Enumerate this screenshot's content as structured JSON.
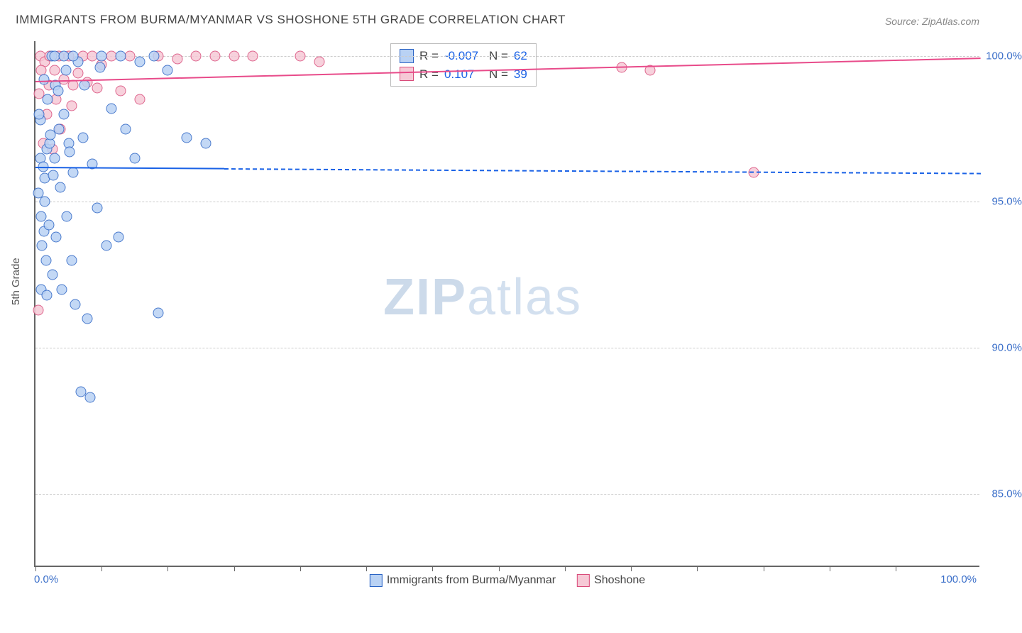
{
  "title_text": "IMMIGRANTS FROM BURMA/MYANMAR VS SHOSHONE 5TH GRADE CORRELATION CHART",
  "source_prefix": "Source: ",
  "source_name": "ZipAtlas.com",
  "ylabel": "5th Grade",
  "watermark_bold": "ZIP",
  "watermark_light": "atlas",
  "chart": {
    "type": "scatter",
    "xlim": [
      0,
      100
    ],
    "ylim": [
      82.5,
      100.5
    ],
    "y_ticks": [
      85.0,
      90.0,
      95.0,
      100.0
    ],
    "y_tick_labels": [
      "85.0%",
      "90.0%",
      "95.0%",
      "100.0%"
    ],
    "x_minor_ticks": [
      0,
      7,
      14,
      21,
      28,
      35,
      42,
      49,
      56,
      63,
      70,
      77,
      84,
      91
    ],
    "x_origin_label": "0.0%",
    "x_max_label": "100.0%",
    "grid_color": "#cccccc",
    "axis_color": "#666666",
    "background_color": "#ffffff"
  },
  "series": {
    "a": {
      "label": "Immigrants from Burma/Myanmar",
      "point_fill": "#b9d2f4",
      "point_stroke": "#2a63c4",
      "trend_color": "#1a62e6",
      "trend_solid_end_pct": 20,
      "R": "-0.007",
      "N": "62",
      "trend_y_start": 96.2,
      "trend_y_end": 96.0,
      "points": [
        [
          0.5,
          96.5
        ],
        [
          0.8,
          96.2
        ],
        [
          1.0,
          95.8
        ],
        [
          1.2,
          96.8
        ],
        [
          1.5,
          97.0
        ],
        [
          1.0,
          95.0
        ],
        [
          0.6,
          94.5
        ],
        [
          0.9,
          94.0
        ],
        [
          1.4,
          94.2
        ],
        [
          2.0,
          96.5
        ],
        [
          2.5,
          97.5
        ],
        [
          3.0,
          98.0
        ],
        [
          3.5,
          97.0
        ],
        [
          4.0,
          96.0
        ],
        [
          0.7,
          93.5
        ],
        [
          1.1,
          93.0
        ],
        [
          2.2,
          93.8
        ],
        [
          1.8,
          92.5
        ],
        [
          2.8,
          92.0
        ],
        [
          0.5,
          97.8
        ],
        [
          1.3,
          98.5
        ],
        [
          2.1,
          99.0
        ],
        [
          3.2,
          99.5
        ],
        [
          4.5,
          99.8
        ],
        [
          5.0,
          97.2
        ],
        [
          6.0,
          96.3
        ],
        [
          7.0,
          100.0
        ],
        [
          8.0,
          98.2
        ],
        [
          9.5,
          97.5
        ],
        [
          11.0,
          99.8
        ],
        [
          12.5,
          100.0
        ],
        [
          14.0,
          99.5
        ],
        [
          3.8,
          93.0
        ],
        [
          4.2,
          91.5
        ],
        [
          5.5,
          91.0
        ],
        [
          6.5,
          94.8
        ],
        [
          0.4,
          98.0
        ],
        [
          0.9,
          99.2
        ],
        [
          1.7,
          100.0
        ],
        [
          2.6,
          95.5
        ],
        [
          3.3,
          94.5
        ],
        [
          4.8,
          88.5
        ],
        [
          5.8,
          88.3
        ],
        [
          7.5,
          93.5
        ],
        [
          8.8,
          93.8
        ],
        [
          16.0,
          97.2
        ],
        [
          18.0,
          97.0
        ],
        [
          13.0,
          91.2
        ],
        [
          2.4,
          98.8
        ],
        [
          1.6,
          97.3
        ],
        [
          0.3,
          95.3
        ],
        [
          1.9,
          95.9
        ],
        [
          3.6,
          96.7
        ],
        [
          5.2,
          99.0
        ],
        [
          6.8,
          99.6
        ],
        [
          9.0,
          100.0
        ],
        [
          10.5,
          96.5
        ],
        [
          0.6,
          92.0
        ],
        [
          1.2,
          91.8
        ],
        [
          2.0,
          100.0
        ],
        [
          3.0,
          100.0
        ],
        [
          4.0,
          100.0
        ]
      ]
    },
    "b": {
      "label": "Shoshone",
      "point_fill": "#f6c9d6",
      "point_stroke": "#d94b7a",
      "trend_color": "#e84b8a",
      "trend_solid_end_pct": 100,
      "R": "0.107",
      "N": "39",
      "trend_y_start": 99.15,
      "trend_y_end": 99.95,
      "points": [
        [
          0.5,
          100.0
        ],
        [
          1.0,
          99.8
        ],
        [
          1.5,
          100.0
        ],
        [
          2.0,
          99.5
        ],
        [
          2.5,
          100.0
        ],
        [
          3.0,
          99.2
        ],
        [
          3.5,
          100.0
        ],
        [
          4.0,
          99.0
        ],
        [
          5.0,
          100.0
        ],
        [
          6.0,
          100.0
        ],
        [
          7.0,
          99.7
        ],
        [
          8.0,
          100.0
        ],
        [
          9.0,
          98.8
        ],
        [
          10.0,
          100.0
        ],
        [
          11.0,
          98.5
        ],
        [
          13.0,
          100.0
        ],
        [
          15.0,
          99.9
        ],
        [
          17.0,
          100.0
        ],
        [
          19.0,
          100.0
        ],
        [
          21.0,
          100.0
        ],
        [
          23.0,
          100.0
        ],
        [
          28.0,
          100.0
        ],
        [
          30.0,
          99.8
        ],
        [
          62.0,
          99.6
        ],
        [
          65.0,
          99.5
        ],
        [
          76.0,
          96.0
        ],
        [
          1.2,
          98.0
        ],
        [
          0.8,
          97.0
        ],
        [
          1.8,
          96.8
        ],
        [
          2.6,
          97.5
        ],
        [
          0.4,
          98.7
        ],
        [
          3.8,
          98.3
        ],
        [
          0.3,
          91.3
        ],
        [
          0.6,
          99.5
        ],
        [
          1.4,
          99.0
        ],
        [
          2.2,
          98.5
        ],
        [
          4.5,
          99.4
        ],
        [
          5.5,
          99.1
        ],
        [
          6.5,
          98.9
        ]
      ]
    }
  },
  "legend": {
    "stats_prefix_R": "R =",
    "stats_prefix_N": "N ="
  }
}
